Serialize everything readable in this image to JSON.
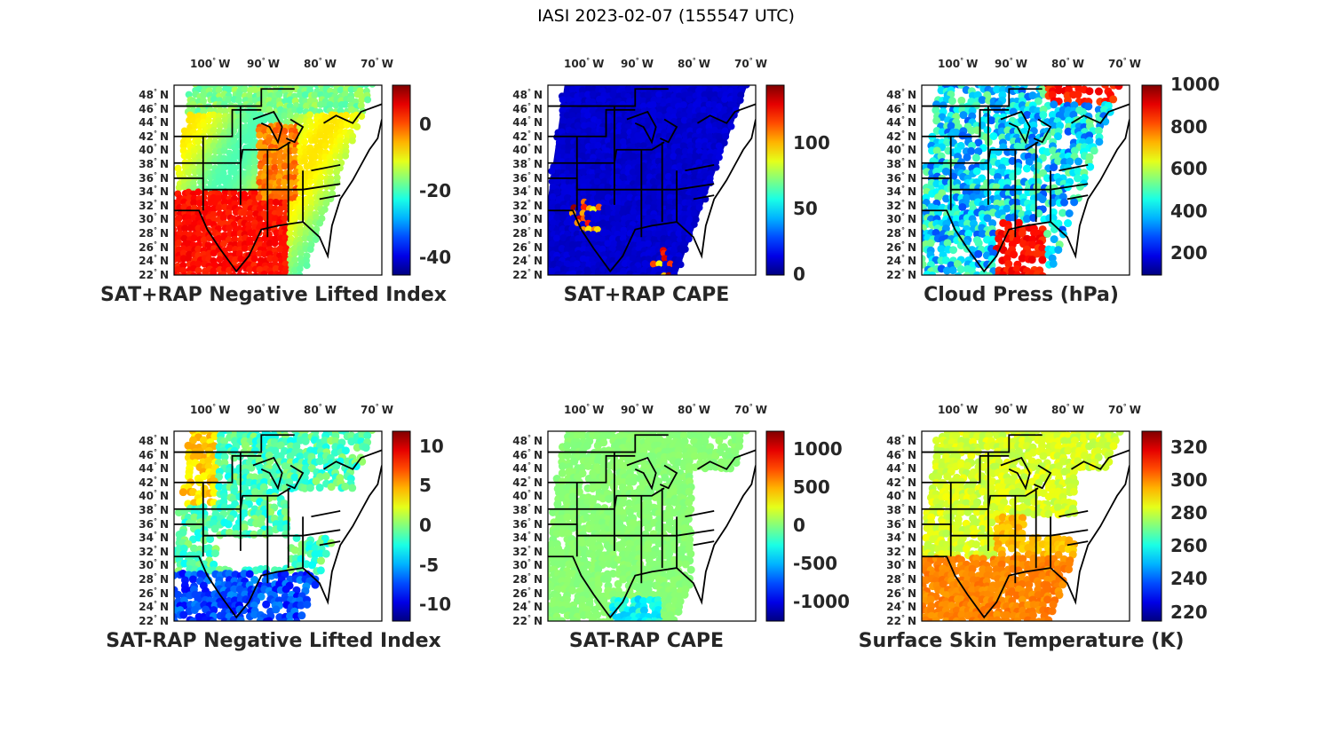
{
  "title": "IASI 2023-02-07 (155547 UTC)",
  "lon_ticks": [
    "100",
    "90",
    "80",
    "70"
  ],
  "lon_suffix": "W",
  "lat_ticks": [
    "48",
    "46",
    "44",
    "42",
    "40",
    "38",
    "36",
    "34",
    "32",
    "30",
    "28",
    "26",
    "24",
    "22"
  ],
  "lat_suffix": "N",
  "deg_symbol": "°",
  "panels": [
    {
      "caption": "SAT+RAP Negative Lifted Index",
      "colorbar_ticks": [
        "0",
        "-20",
        "-40"
      ],
      "colorbar_range": [
        -45,
        12
      ],
      "field": "li_plus"
    },
    {
      "caption": "SAT+RAP CAPE",
      "colorbar_ticks": [
        "100",
        "50",
        "0"
      ],
      "colorbar_range": [
        0,
        145
      ],
      "field": "cape_plus"
    },
    {
      "caption": "Cloud Press (hPa)",
      "colorbar_ticks": [
        "1000",
        "800",
        "600",
        "400",
        "200"
      ],
      "colorbar_range": [
        100,
        1000
      ],
      "field": "cloud"
    },
    {
      "caption": "SAT-RAP Negative Lifted Index",
      "colorbar_ticks": [
        "10",
        "5",
        "0",
        "-5",
        "-10"
      ],
      "colorbar_range": [
        -12,
        12
      ],
      "field": "li_minus"
    },
    {
      "caption": "SAT-RAP CAPE",
      "colorbar_ticks": [
        "1000",
        "500",
        "0",
        "-500",
        "-1000"
      ],
      "colorbar_range": [
        -1250,
        1250
      ],
      "field": "cape_minus"
    },
    {
      "caption": "Surface Skin Temperature (K)",
      "colorbar_ticks": [
        "320",
        "300",
        "280",
        "260",
        "240",
        "220"
      ],
      "colorbar_range": [
        215,
        330
      ],
      "field": "skin"
    }
  ],
  "colormap": "jet",
  "colors": {
    "text": "#262626",
    "border": "#000000",
    "background": "#ffffff"
  }
}
